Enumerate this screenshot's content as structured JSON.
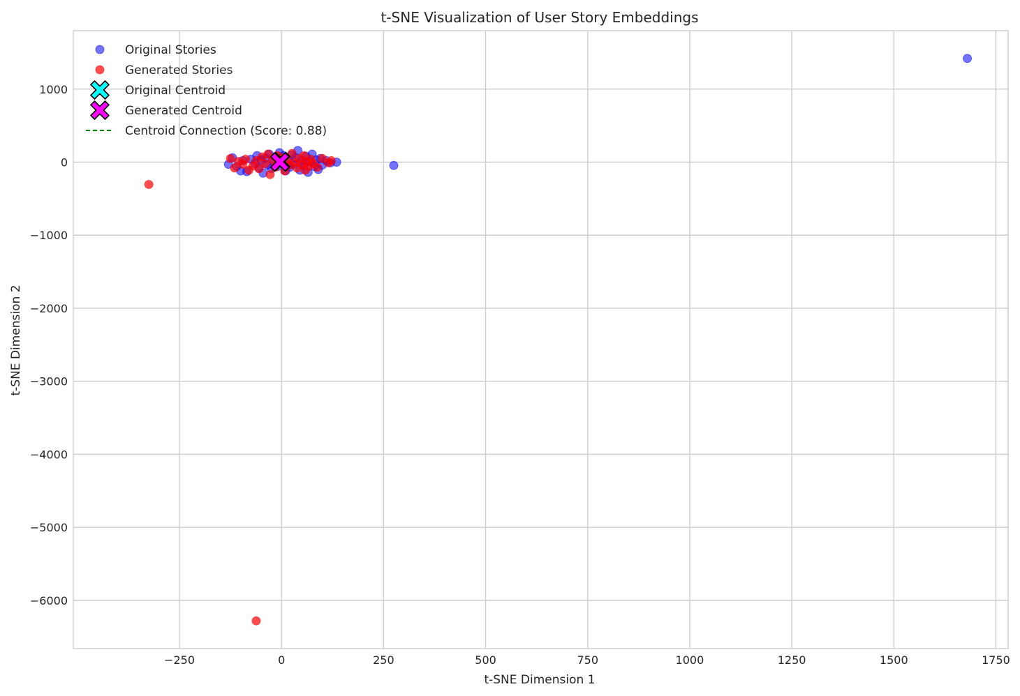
{
  "chart_data": {
    "type": "scatter",
    "title": "t-SNE Visualization of User Story Embeddings",
    "xlabel": "t-SNE Dimension 1",
    "ylabel": "t-SNE Dimension 2",
    "xlim": [
      -510,
      1780
    ],
    "ylim": [
      -6660,
      1800
    ],
    "xticks": [
      -250,
      0,
      250,
      500,
      750,
      1000,
      1250,
      1500,
      1750
    ],
    "yticks": [
      -6000,
      -5000,
      -4000,
      -3000,
      -2000,
      -1000,
      0,
      1000
    ],
    "xtick_labels": [
      "−250",
      "0",
      "250",
      "500",
      "750",
      "1000",
      "1250",
      "1500",
      "1750"
    ],
    "ytick_labels": [
      "−6000",
      "−5000",
      "−4000",
      "−3000",
      "−2000",
      "−1000",
      "0",
      "1000"
    ],
    "grid": true,
    "legend_position": "top-left",
    "colors": {
      "original": "#0000ff",
      "generated": "#ff0000",
      "original_centroid": "#00ffff",
      "generated_centroid": "#ff00ff",
      "connection": "#008000"
    },
    "series": [
      {
        "name": "Original Stories",
        "points": [
          [
            1680,
            1420
          ],
          [
            275,
            -45
          ],
          [
            -130,
            -30
          ],
          [
            -120,
            60
          ],
          [
            -110,
            -60
          ],
          [
            -100,
            -120
          ],
          [
            -95,
            20
          ],
          [
            -85,
            -130
          ],
          [
            -75,
            40
          ],
          [
            -65,
            -20
          ],
          [
            -60,
            90
          ],
          [
            -55,
            -80
          ],
          [
            -50,
            30
          ],
          [
            -45,
            -150
          ],
          [
            -40,
            60
          ],
          [
            -35,
            -40
          ],
          [
            -30,
            110
          ],
          [
            -25,
            -90
          ],
          [
            -20,
            10
          ],
          [
            -15,
            70
          ],
          [
            -10,
            -60
          ],
          [
            -5,
            130
          ],
          [
            0,
            -20
          ],
          [
            5,
            90
          ],
          [
            10,
            -120
          ],
          [
            15,
            40
          ],
          [
            20,
            -70
          ],
          [
            25,
            100
          ],
          [
            30,
            -30
          ],
          [
            35,
            60
          ],
          [
            40,
            160
          ],
          [
            45,
            -110
          ],
          [
            50,
            20
          ],
          [
            55,
            -50
          ],
          [
            60,
            80
          ],
          [
            65,
            -140
          ],
          [
            70,
            0
          ],
          [
            75,
            110
          ],
          [
            80,
            -60
          ],
          [
            85,
            30
          ],
          [
            90,
            -100
          ],
          [
            95,
            50
          ],
          [
            100,
            -40
          ],
          [
            110,
            20
          ],
          [
            120,
            -10
          ],
          [
            135,
            0
          ]
        ]
      },
      {
        "name": "Generated Stories",
        "points": [
          [
            -325,
            -305
          ],
          [
            -62,
            -6280
          ],
          [
            -125,
            50
          ],
          [
            -115,
            -80
          ],
          [
            -105,
            10
          ],
          [
            -95,
            -30
          ],
          [
            -88,
            40
          ],
          [
            -80,
            -110
          ],
          [
            -70,
            -50
          ],
          [
            -62,
            20
          ],
          [
            -55,
            -90
          ],
          [
            -48,
            70
          ],
          [
            -40,
            -20
          ],
          [
            -33,
            110
          ],
          [
            -28,
            -170
          ],
          [
            -22,
            30
          ],
          [
            -16,
            -70
          ],
          [
            -10,
            90
          ],
          [
            -4,
            -10
          ],
          [
            2,
            60
          ],
          [
            8,
            -120
          ],
          [
            14,
            20
          ],
          [
            20,
            -40
          ],
          [
            26,
            120
          ],
          [
            32,
            0
          ],
          [
            38,
            -80
          ],
          [
            44,
            50
          ],
          [
            50,
            -30
          ],
          [
            55,
            90
          ],
          [
            58,
            -110
          ],
          [
            62,
            10
          ],
          [
            66,
            -60
          ],
          [
            72,
            40
          ],
          [
            78,
            -20
          ],
          [
            88,
            -70
          ],
          [
            100,
            50
          ],
          [
            115,
            -10
          ],
          [
            122,
            20
          ]
        ]
      },
      {
        "name": "Original Centroid",
        "points": [
          [
            -2,
            8
          ]
        ]
      },
      {
        "name": "Generated Centroid",
        "points": [
          [
            -4,
            3
          ]
        ]
      },
      {
        "name": "Centroid Connection (Score: 0.88)",
        "points": [
          [
            -2,
            8
          ],
          [
            -4,
            3
          ]
        ]
      }
    ]
  }
}
